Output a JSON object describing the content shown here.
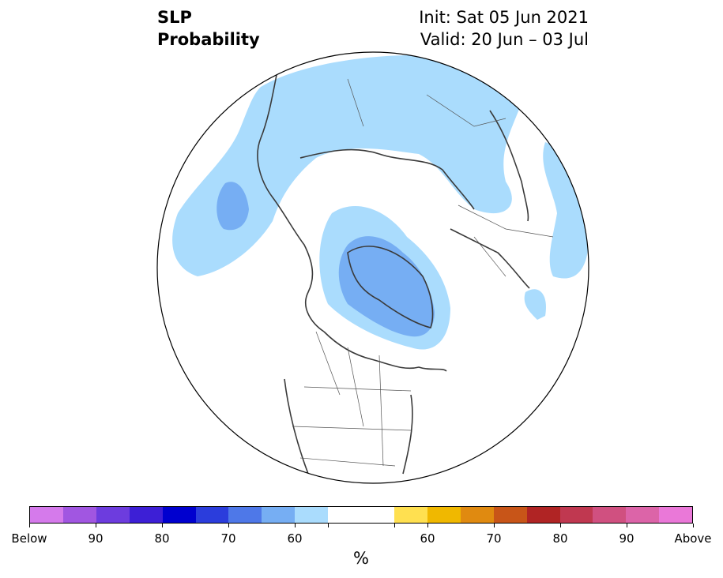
{
  "title": {
    "left_line1": "SLP",
    "left_line2": "Probability",
    "right_line1": "Init: Sat 05 Jun 2021",
    "right_line2": "Valid: 20 Jun – 03 Jul"
  },
  "map": {
    "projection": "north polar stereographic",
    "fill_colors": {
      "ocean_land_default": "#ffffff",
      "below_50_60": "#aadcfd",
      "below_60_70": "#76aef3"
    }
  },
  "colorbar": {
    "colors": [
      "#d57aeb",
      "#a156e1",
      "#6d3cde",
      "#3d1fd6",
      "#0000cf",
      "#2b3ddc",
      "#4e78e8",
      "#76aef3",
      "#aadcfd",
      "#ffffff",
      "#ffffff",
      "#ffe050",
      "#f0b800",
      "#e08a10",
      "#c85518",
      "#b02424",
      "#c03850",
      "#d05080",
      "#dc64a8",
      "#ea78d8"
    ],
    "tick_labels": [
      "Below",
      "90",
      "80",
      "70",
      "60",
      "",
      "",
      "60",
      "70",
      "80",
      "90",
      "Above"
    ],
    "unit": "%"
  }
}
